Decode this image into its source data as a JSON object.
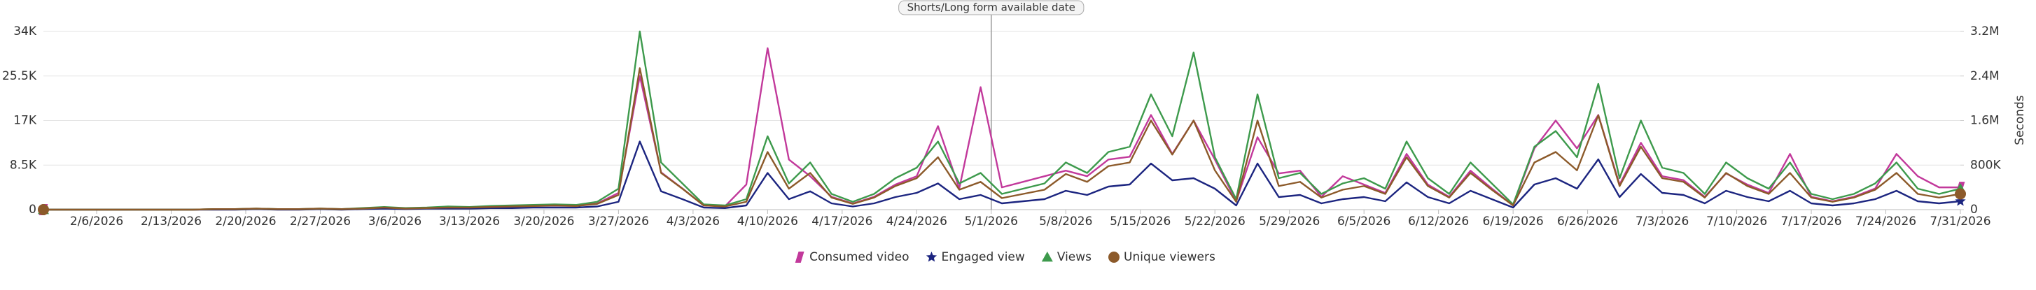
{
  "chart_data": {
    "type": "line",
    "x": [
      "2/1/2026",
      "2/3/2026",
      "2/5/2026",
      "2/7/2026",
      "2/9/2026",
      "2/11/2026",
      "2/13/2026",
      "2/15/2026",
      "2/17/2026",
      "2/19/2026",
      "2/21/2026",
      "2/23/2026",
      "2/25/2026",
      "2/27/2026",
      "3/1/2026",
      "3/3/2026",
      "3/5/2026",
      "3/7/2026",
      "3/9/2026",
      "3/11/2026",
      "3/13/2026",
      "3/15/2026",
      "3/17/2026",
      "3/19/2026",
      "3/21/2026",
      "3/23/2026",
      "3/25/2026",
      "3/27/2026",
      "3/29/2026",
      "3/31/2026",
      "4/2/2026",
      "4/4/2026",
      "4/6/2026",
      "4/8/2026",
      "4/10/2026",
      "4/12/2026",
      "4/14/2026",
      "4/16/2026",
      "4/18/2026",
      "4/20/2026",
      "4/22/2026",
      "4/24/2026",
      "4/26/2026",
      "4/28/2026",
      "4/30/2026",
      "5/2/2026",
      "5/4/2026",
      "5/6/2026",
      "5/8/2026",
      "5/10/2026",
      "5/12/2026",
      "5/14/2026",
      "5/16/2026",
      "5/18/2026",
      "5/20/2026",
      "5/22/2026",
      "5/24/2026",
      "5/26/2026",
      "5/28/2026",
      "5/30/2026",
      "6/1/2026",
      "6/3/2026",
      "6/5/2026",
      "6/7/2026",
      "6/9/2026",
      "6/11/2026",
      "6/13/2026",
      "6/15/2026",
      "6/17/2026",
      "6/19/2026",
      "6/21/2026",
      "6/23/2026",
      "6/25/2026",
      "6/27/2026",
      "6/29/2026",
      "7/1/2026",
      "7/3/2026",
      "7/5/2026",
      "7/7/2026",
      "7/9/2026",
      "7/11/2026",
      "7/13/2026",
      "7/15/2026",
      "7/17/2026",
      "7/19/2026",
      "7/21/2026",
      "7/23/2026",
      "7/25/2026",
      "7/27/2026",
      "7/29/2026",
      "7/31/2026"
    ],
    "xlim": [
      "2/1/2026",
      "7/31/2026"
    ],
    "xticks": [
      "2/6/2026",
      "2/13/2026",
      "2/20/2026",
      "2/27/2026",
      "3/6/2026",
      "3/13/2026",
      "3/20/2026",
      "3/27/2026",
      "4/3/2026",
      "4/10/2026",
      "4/17/2026",
      "4/24/2026",
      "5/1/2026",
      "5/8/2026",
      "5/15/2026",
      "5/22/2026",
      "5/29/2026",
      "6/5/2026",
      "6/12/2026",
      "6/19/2026",
      "6/26/2026",
      "7/3/2026",
      "7/10/2026",
      "7/17/2026",
      "7/24/2026",
      "7/31/2026"
    ],
    "ylim": [
      0,
      34000
    ],
    "yticks": [
      0,
      {
        "value": 8500,
        "label": "8.5K"
      },
      {
        "value": 17000,
        "label": "17K"
      },
      {
        "value": 25500,
        "label": "25.5K"
      },
      {
        "value": 34000,
        "label": "34K"
      }
    ],
    "y2lim": [
      0,
      3200000
    ],
    "y2ticks": [
      0,
      {
        "value": 800000,
        "label": "800K"
      },
      {
        "value": 1600000,
        "label": "1.6M"
      },
      {
        "value": 2400000,
        "label": "2.4M"
      },
      {
        "value": 3200000,
        "label": "3.2M"
      }
    ],
    "y2label": "Seconds",
    "grid": true,
    "annotations": [
      {
        "x": "5/1/2026",
        "text": "Shorts/Long form available date"
      }
    ],
    "series": [
      {
        "name": "Consumed video",
        "color": "#c2399b",
        "marker": "parallelogram",
        "axis": "y2",
        "values": [
          0,
          0,
          0,
          0,
          0,
          0,
          0,
          0,
          8000,
          8000,
          15000,
          8000,
          8000,
          15000,
          8000,
          22000,
          38000,
          22000,
          30000,
          45000,
          38000,
          52000,
          60000,
          68000,
          75000,
          68000,
          110000,
          300000,
          2400000,
          670000,
          380000,
          75000,
          60000,
          450000,
          2900000,
          900000,
          600000,
          230000,
          110000,
          230000,
          450000,
          600000,
          1500000,
          380000,
          2200000,
          400000,
          500000,
          600000,
          700000,
          600000,
          900000,
          950000,
          1700000,
          1000000,
          1600000,
          900000,
          150000,
          1300000,
          650000,
          700000,
          230000,
          600000,
          450000,
          300000,
          1000000,
          450000,
          230000,
          700000,
          380000,
          75000,
          1100000,
          1600000,
          1100000,
          1700000,
          450000,
          1200000,
          600000,
          530000,
          230000,
          650000,
          450000,
          300000,
          1000000,
          230000,
          150000,
          230000,
          380000,
          1000000,
          600000,
          400000,
          400000
        ]
      },
      {
        "name": "Engaged view",
        "color": "#1c2580",
        "marker": "star",
        "values": [
          0,
          0,
          0,
          0,
          0,
          0,
          0,
          0,
          0,
          0,
          100,
          0,
          0,
          100,
          0,
          100,
          200,
          100,
          200,
          200,
          200,
          300,
          300,
          400,
          400,
          400,
          600,
          1500,
          13000,
          3500,
          2000,
          400,
          300,
          800,
          7000,
          2000,
          3500,
          1200,
          600,
          1200,
          2400,
          3200,
          5000,
          2000,
          2800,
          1200,
          1600,
          2000,
          3600,
          2800,
          4400,
          4800,
          8800,
          5600,
          6000,
          4000,
          800,
          8800,
          2400,
          2800,
          1200,
          2000,
          2400,
          1600,
          5200,
          2400,
          1200,
          3600,
          2000,
          400,
          4800,
          6000,
          4000,
          9600,
          2400,
          6800,
          3200,
          2800,
          1200,
          3600,
          2400,
          1600,
          3600,
          1200,
          800,
          1200,
          2000,
          3600,
          1600,
          1200,
          1600
        ]
      },
      {
        "name": "Views",
        "color": "#3d9a4c",
        "marker": "triangle",
        "values": [
          0,
          0,
          0,
          0,
          0,
          0,
          0,
          0,
          100,
          100,
          200,
          100,
          100,
          200,
          100,
          300,
          500,
          300,
          400,
          600,
          500,
          700,
          800,
          900,
          1000,
          900,
          1500,
          4000,
          34000,
          9000,
          5000,
          1000,
          800,
          2000,
          14000,
          5000,
          9000,
          3000,
          1500,
          3000,
          6000,
          8000,
          13000,
          5000,
          7000,
          3000,
          4000,
          5000,
          9000,
          7000,
          11000,
          12000,
          22000,
          14000,
          30000,
          10000,
          2000,
          22000,
          6000,
          7000,
          3000,
          5000,
          6000,
          4000,
          13000,
          6000,
          3000,
          9000,
          5000,
          1000,
          12000,
          15000,
          10000,
          24000,
          6000,
          17000,
          8000,
          7000,
          3000,
          9000,
          6000,
          4000,
          9000,
          3000,
          2000,
          3000,
          5000,
          9000,
          4000,
          3000,
          4000
        ]
      },
      {
        "name": "Unique viewers",
        "color": "#8c5a2a",
        "marker": "circle",
        "values": [
          0,
          0,
          0,
          0,
          0,
          0,
          0,
          0,
          100,
          100,
          200,
          100,
          100,
          200,
          100,
          200,
          400,
          200,
          300,
          400,
          400,
          500,
          600,
          700,
          800,
          700,
          1100,
          2800,
          27000,
          7000,
          4000,
          800,
          600,
          1500,
          11000,
          4000,
          7000,
          2300,
          1100,
          2300,
          4500,
          6000,
          10000,
          3800,
          5300,
          2200,
          3000,
          3800,
          6800,
          5300,
          8300,
          9000,
          17000,
          10500,
          17000,
          7500,
          1500,
          17000,
          4500,
          5300,
          2300,
          3800,
          4500,
          3000,
          10000,
          4500,
          2300,
          7000,
          3800,
          800,
          9000,
          11000,
          7500,
          18000,
          4500,
          12000,
          6000,
          5300,
          2300,
          7000,
          4500,
          3000,
          7000,
          2300,
          1500,
          2300,
          3800,
          7000,
          3000,
          2300,
          3000
        ]
      }
    ]
  }
}
